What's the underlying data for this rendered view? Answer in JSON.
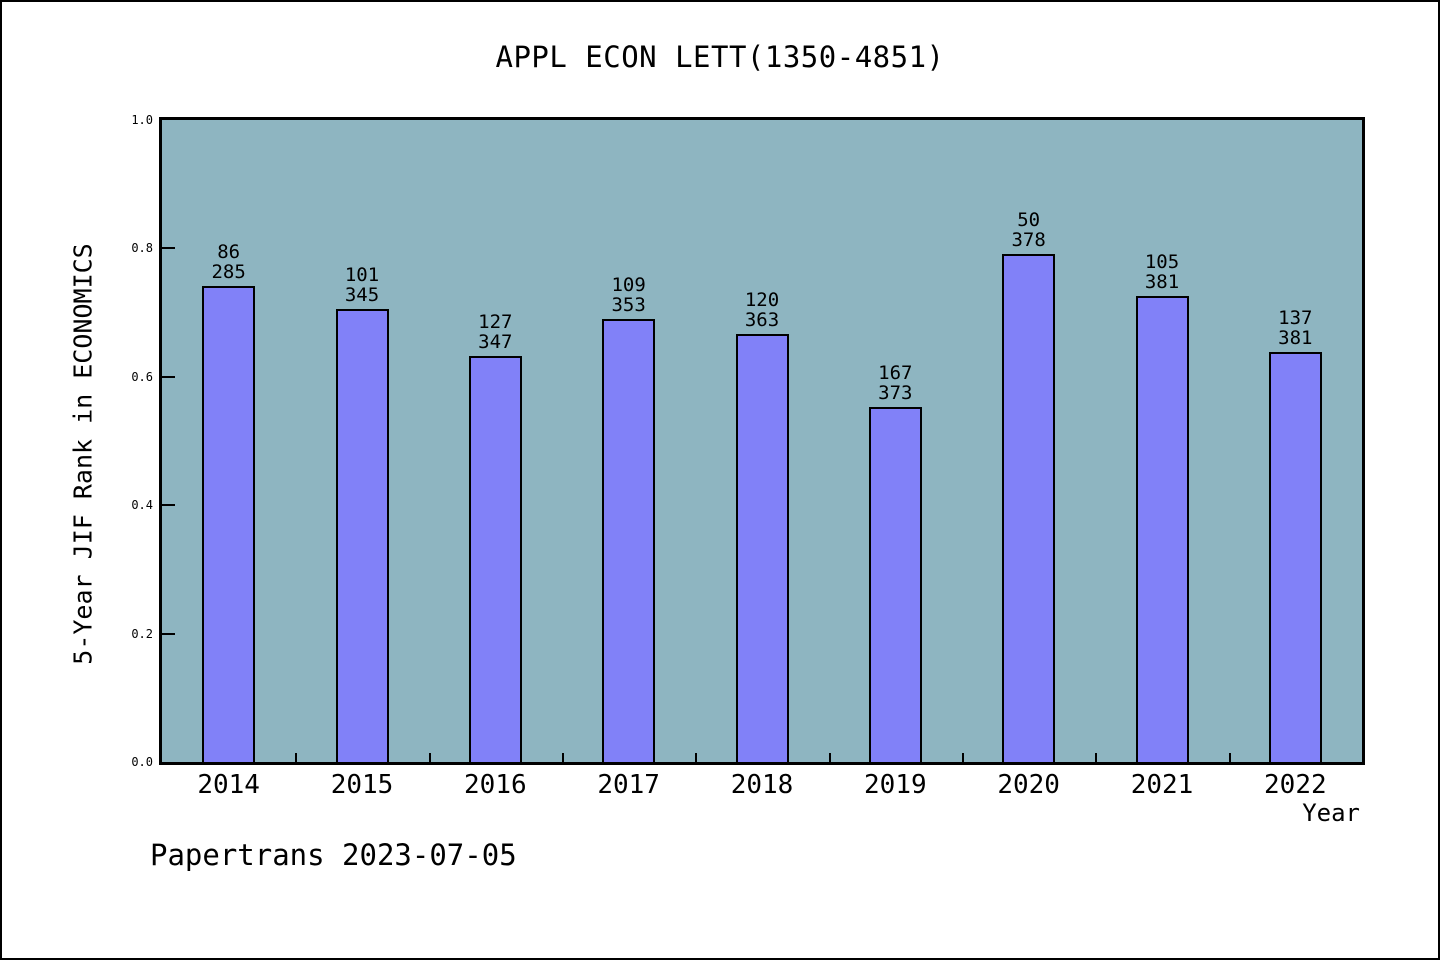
{
  "chart": {
    "title": "APPL ECON LETT(1350-4851)",
    "ylabel": "5-Year JIF Rank in ECONOMICS",
    "xlabel": "Year",
    "footer": "Papertrans 2023-07-05"
  },
  "chart_data": {
    "type": "bar",
    "title": "APPL ECON LETT(1350-4851)",
    "xlabel": "Year",
    "ylabel": "5-Year JIF Rank in ECONOMICS",
    "categories": [
      "2014",
      "2015",
      "2016",
      "2017",
      "2018",
      "2019",
      "2020",
      "2021",
      "2022"
    ],
    "values": [
      0.742,
      0.706,
      0.632,
      0.69,
      0.667,
      0.553,
      0.791,
      0.726,
      0.639
    ],
    "bar_labels": [
      {
        "rank": "86",
        "total": "285"
      },
      {
        "rank": "101",
        "total": "345"
      },
      {
        "rank": "127",
        "total": "347"
      },
      {
        "rank": "109",
        "total": "353"
      },
      {
        "rank": "120",
        "total": "363"
      },
      {
        "rank": "167",
        "total": "373"
      },
      {
        "rank": "50",
        "total": "378"
      },
      {
        "rank": "105",
        "total": "381"
      },
      {
        "rank": "137",
        "total": "381"
      }
    ],
    "yticks": [
      0.0,
      0.2,
      0.4,
      0.6,
      0.8,
      1.0
    ],
    "ylim": [
      0,
      1
    ],
    "grid": false,
    "legend": "none",
    "colors": {
      "bar_fill": "#8181f8",
      "bar_border": "#000000",
      "plot_background": "#8eb5c1",
      "text": "#000000"
    },
    "footer": "Papertrans 2023-07-05"
  }
}
